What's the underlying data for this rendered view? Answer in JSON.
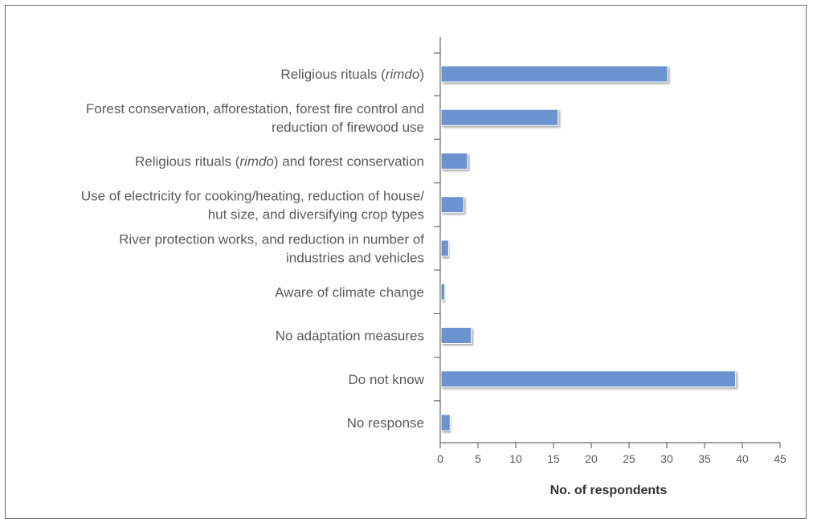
{
  "chart_data": {
    "type": "bar",
    "orientation": "horizontal",
    "categories": [
      [
        "Religious rituals (",
        {
          "i": "rimdo"
        },
        ")"
      ],
      [
        "Forest conservation, afforestation, forest fire control and",
        "reduction of firewood use"
      ],
      [
        "Religious rituals (",
        {
          "i": "rimdo"
        },
        ") and forest conservation"
      ],
      [
        "Use of electricity for cooking/heating, reduction of house/",
        "hut size, and diversifying crop types"
      ],
      [
        "River protection works, and reduction in number of",
        "industries and vehicles"
      ],
      [
        "Aware of climate change"
      ],
      [
        "No adaptation measures"
      ],
      [
        "Do not know"
      ],
      [
        "No response"
      ]
    ],
    "values": [
      30,
      15.5,
      3.5,
      3,
      1,
      0.5,
      4,
      39,
      1.2
    ],
    "xlabel": "No. of respondents",
    "ylabel": "",
    "xlim": [
      0,
      45
    ],
    "xticks": [
      0,
      5,
      10,
      15,
      20,
      25,
      30,
      35,
      40,
      45
    ],
    "bar_color": "#6b93cf",
    "grid": false
  }
}
